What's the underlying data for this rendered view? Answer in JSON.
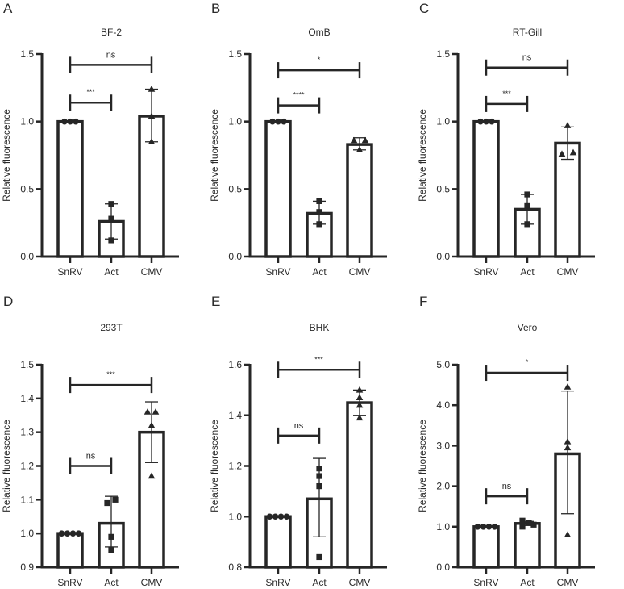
{
  "chart_data": [
    {
      "type": "bar",
      "panel": "A",
      "title": "BF-2",
      "xlabel": "",
      "ylabel": "Relative fluorescence",
      "categories": [
        "SnRV",
        "Act",
        "CMV"
      ],
      "ylim": [
        0,
        1.5
      ],
      "yticks": [
        0.0,
        0.5,
        1.0,
        1.5
      ],
      "ytick_labels": [
        "0.0",
        "0.5",
        "1.0",
        "1.5"
      ],
      "grid": false,
      "series": [
        {
          "name": "SnRV",
          "mean": 1.0,
          "error": [
            1.0,
            1.0
          ],
          "points": [
            1.0,
            1.0,
            1.0
          ],
          "marker": "circle"
        },
        {
          "name": "Act",
          "mean": 0.26,
          "error": [
            0.13,
            0.39
          ],
          "points": [
            0.39,
            0.28,
            0.12
          ],
          "marker": "square"
        },
        {
          "name": "CMV",
          "mean": 1.04,
          "error": [
            0.85,
            1.24
          ],
          "points": [
            1.24,
            1.04,
            0.85
          ],
          "marker": "triangle"
        }
      ],
      "significance": [
        {
          "from": "SnRV",
          "to": "Act",
          "label": "***",
          "y": 1.14
        },
        {
          "from": "SnRV",
          "to": "CMV",
          "label": "ns",
          "y": 1.42
        }
      ]
    },
    {
      "type": "bar",
      "panel": "B",
      "title": "OmB",
      "xlabel": "",
      "ylabel": "Relative fluorescence",
      "categories": [
        "SnRV",
        "Act",
        "CMV"
      ],
      "ylim": [
        0,
        1.5
      ],
      "yticks": [
        0.0,
        0.5,
        1.0,
        1.5
      ],
      "ytick_labels": [
        "0.0",
        "0.5",
        "1.0",
        "1.5"
      ],
      "grid": false,
      "series": [
        {
          "name": "SnRV",
          "mean": 1.0,
          "error": [
            1.0,
            1.0
          ],
          "points": [
            1.0,
            1.0,
            1.0
          ],
          "marker": "circle"
        },
        {
          "name": "Act",
          "mean": 0.32,
          "error": [
            0.24,
            0.41
          ],
          "points": [
            0.41,
            0.33,
            0.24
          ],
          "marker": "square"
        },
        {
          "name": "CMV",
          "mean": 0.83,
          "error": [
            0.79,
            0.88
          ],
          "points": [
            0.86,
            0.86,
            0.79
          ],
          "marker": "triangle"
        }
      ],
      "significance": [
        {
          "from": "SnRV",
          "to": "Act",
          "label": "****",
          "y": 1.12
        },
        {
          "from": "SnRV",
          "to": "CMV",
          "label": "*",
          "y": 1.38
        }
      ]
    },
    {
      "type": "bar",
      "panel": "C",
      "title": "RT-Gill",
      "xlabel": "",
      "ylabel": "Relative fluorescence",
      "categories": [
        "SnRV",
        "Act",
        "CMV"
      ],
      "ylim": [
        0,
        1.5
      ],
      "yticks": [
        0.0,
        0.5,
        1.0,
        1.5
      ],
      "ytick_labels": [
        "0.0",
        "0.5",
        "1.0",
        "1.5"
      ],
      "grid": false,
      "series": [
        {
          "name": "SnRV",
          "mean": 1.0,
          "error": [
            1.0,
            1.0
          ],
          "points": [
            1.0,
            1.0,
            1.0
          ],
          "marker": "circle"
        },
        {
          "name": "Act",
          "mean": 0.35,
          "error": [
            0.24,
            0.46
          ],
          "points": [
            0.46,
            0.38,
            0.24
          ],
          "marker": "square"
        },
        {
          "name": "CMV",
          "mean": 0.84,
          "error": [
            0.72,
            0.96
          ],
          "points": [
            0.97,
            0.76,
            0.77
          ],
          "marker": "triangle"
        }
      ],
      "significance": [
        {
          "from": "SnRV",
          "to": "Act",
          "label": "***",
          "y": 1.13
        },
        {
          "from": "SnRV",
          "to": "CMV",
          "label": "ns",
          "y": 1.4
        }
      ]
    },
    {
      "type": "bar",
      "panel": "D",
      "title": "293T",
      "xlabel": "",
      "ylabel": "Relative fluorescence",
      "categories": [
        "SnRV",
        "Act",
        "CMV"
      ],
      "ylim": [
        0.9,
        1.5
      ],
      "yticks": [
        0.9,
        1.0,
        1.1,
        1.2,
        1.3,
        1.4,
        1.5
      ],
      "ytick_labels": [
        "0.9",
        "1.0",
        "1.1",
        "1.2",
        "1.3",
        "1.4",
        "1.5"
      ],
      "grid": false,
      "series": [
        {
          "name": "SnRV",
          "mean": 1.0,
          "error": [
            1.0,
            1.0
          ],
          "points": [
            1.0,
            1.0,
            1.0,
            1.0
          ],
          "marker": "circle"
        },
        {
          "name": "Act",
          "mean": 1.03,
          "error": [
            0.96,
            1.11
          ],
          "points": [
            1.09,
            1.1,
            0.99,
            0.95
          ],
          "marker": "square"
        },
        {
          "name": "CMV",
          "mean": 1.3,
          "error": [
            1.21,
            1.39
          ],
          "points": [
            1.36,
            1.36,
            1.32,
            1.17
          ],
          "marker": "triangle"
        }
      ],
      "significance": [
        {
          "from": "SnRV",
          "to": "Act",
          "label": "ns",
          "y": 1.2
        },
        {
          "from": "SnRV",
          "to": "CMV",
          "label": "***",
          "y": 1.44
        }
      ]
    },
    {
      "type": "bar",
      "panel": "E",
      "title": "BHK",
      "xlabel": "",
      "ylabel": "Relative fluorescence",
      "categories": [
        "SnRV",
        "Act",
        "CMV"
      ],
      "ylim": [
        0.8,
        1.6
      ],
      "yticks": [
        0.8,
        1.0,
        1.2,
        1.4,
        1.6
      ],
      "ytick_labels": [
        "0.8",
        "1.0",
        "1.2",
        "1.4",
        "1.6"
      ],
      "grid": false,
      "series": [
        {
          "name": "SnRV",
          "mean": 1.0,
          "error": [
            1.0,
            1.0
          ],
          "points": [
            1.0,
            1.0,
            1.0,
            1.0
          ],
          "marker": "circle"
        },
        {
          "name": "Act",
          "mean": 1.07,
          "error": [
            0.92,
            1.23
          ],
          "points": [
            1.19,
            1.16,
            1.12,
            0.84
          ],
          "marker": "square"
        },
        {
          "name": "CMV",
          "mean": 1.45,
          "error": [
            1.4,
            1.5
          ],
          "points": [
            1.5,
            1.47,
            1.44,
            1.39
          ],
          "marker": "triangle"
        }
      ],
      "significance": [
        {
          "from": "SnRV",
          "to": "Act",
          "label": "ns",
          "y": 1.32
        },
        {
          "from": "SnRV",
          "to": "CMV",
          "label": "***",
          "y": 1.58
        }
      ]
    },
    {
      "type": "bar",
      "panel": "F",
      "title": "Vero",
      "xlabel": "",
      "ylabel": "Relative fluorescence",
      "categories": [
        "SnRV",
        "Act",
        "CMV"
      ],
      "ylim": [
        0,
        5.0
      ],
      "yticks": [
        0.0,
        1.0,
        2.0,
        3.0,
        4.0,
        5.0
      ],
      "ytick_labels": [
        "0.0",
        "1.0",
        "2.0",
        "3.0",
        "4.0",
        "5.0"
      ],
      "grid": false,
      "series": [
        {
          "name": "SnRV",
          "mean": 1.0,
          "error": [
            1.0,
            1.0
          ],
          "points": [
            1.0,
            1.0,
            1.0,
            1.0
          ],
          "marker": "circle"
        },
        {
          "name": "Act",
          "mean": 1.08,
          "error": [
            1.03,
            1.13
          ],
          "points": [
            1.15,
            1.1,
            1.05,
            1.0
          ],
          "marker": "square"
        },
        {
          "name": "CMV",
          "mean": 2.8,
          "error": [
            1.32,
            4.35
          ],
          "points": [
            4.45,
            3.1,
            2.95,
            0.8
          ],
          "marker": "triangle"
        }
      ],
      "significance": [
        {
          "from": "SnRV",
          "to": "Act",
          "label": "ns",
          "y": 1.75
        },
        {
          "from": "SnRV",
          "to": "CMV",
          "label": "*",
          "y": 4.8
        }
      ]
    }
  ]
}
